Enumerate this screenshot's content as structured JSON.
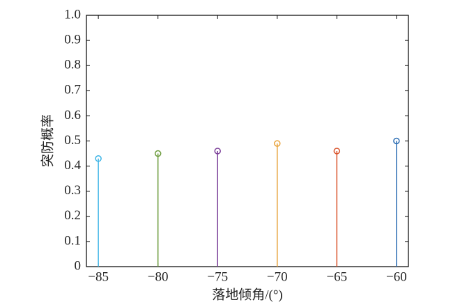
{
  "chart_data": {
    "type": "stem",
    "x_label": "落地倾角/(°)",
    "y_label": "突防概率",
    "x": [
      -85,
      -80,
      -75,
      -70,
      -65,
      -60
    ],
    "values": [
      0.43,
      0.45,
      0.46,
      0.49,
      0.46,
      0.5
    ],
    "colors": [
      "#3cb4e6",
      "#6a9a3a",
      "#7b3f98",
      "#e8a23a",
      "#d9542c",
      "#2f6fb5"
    ],
    "xlim": [
      -86,
      -59
    ],
    "xticks": [
      {
        "value": -85,
        "label": "−85"
      },
      {
        "value": -80,
        "label": "−80"
      },
      {
        "value": -75,
        "label": "−75"
      },
      {
        "value": -70,
        "label": "−70"
      },
      {
        "value": -65,
        "label": "−65"
      },
      {
        "value": -60,
        "label": "−60"
      }
    ],
    "ylim": [
      0,
      1
    ],
    "yticks": [
      0,
      0.1,
      0.2,
      0.3,
      0.4,
      0.5,
      0.6,
      0.7,
      0.8,
      0.9,
      {
        "value": 1,
        "label": "1.0"
      }
    ]
  }
}
